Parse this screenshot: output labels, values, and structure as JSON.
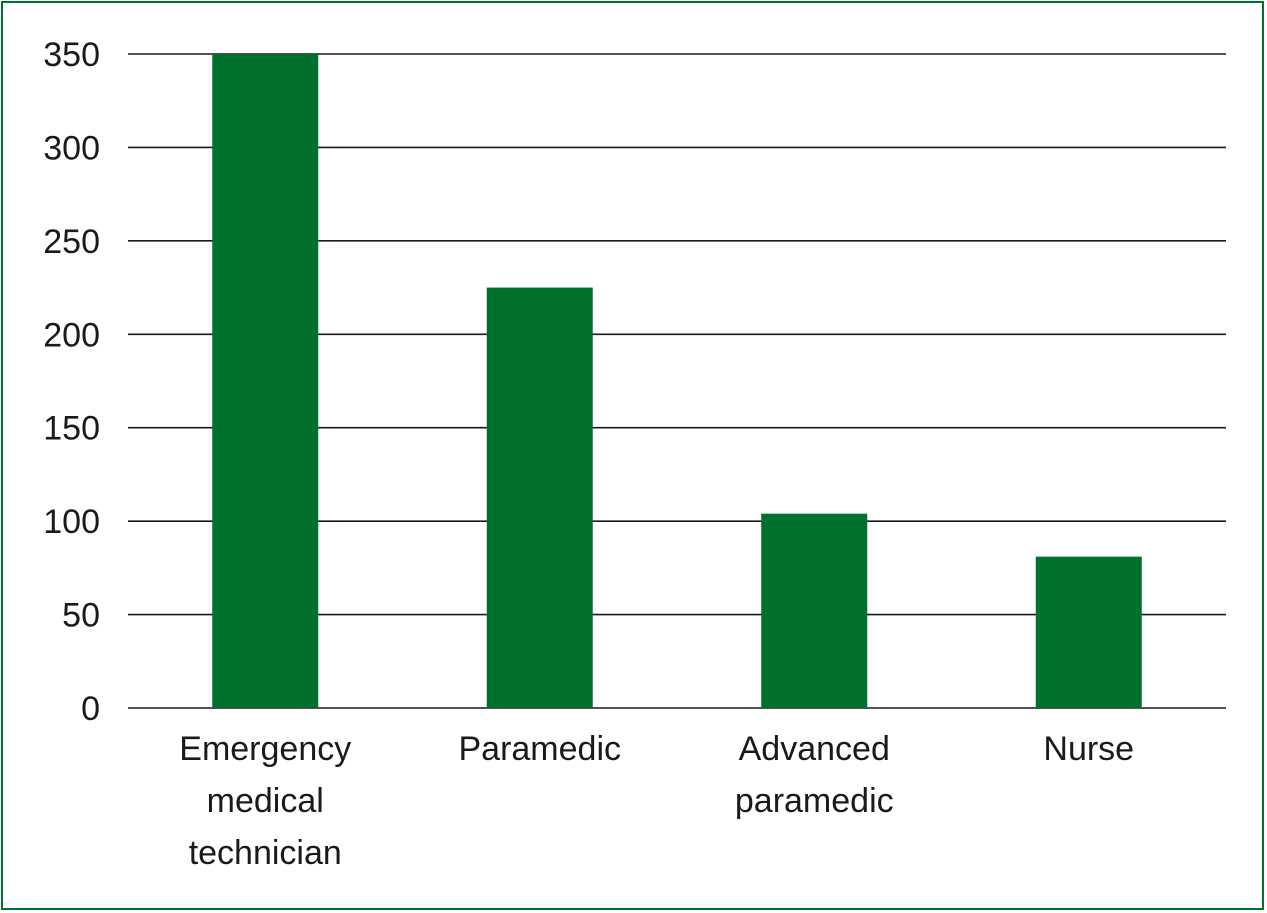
{
  "chart_data": {
    "type": "bar",
    "categories": [
      [
        "Emergency",
        "medical",
        "technician"
      ],
      [
        "Paramedic"
      ],
      [
        "Advanced",
        "paramedic"
      ],
      [
        "Nurse"
      ]
    ],
    "values": [
      350,
      225,
      104,
      81
    ],
    "yticks": [
      0,
      50,
      100,
      150,
      200,
      250,
      300,
      350
    ],
    "ylim": [
      0,
      350
    ],
    "title": "",
    "xlabel": "",
    "ylabel": "",
    "grid": true,
    "legend": "none",
    "bar_color": "#00702f",
    "frame_color": "#00702f"
  }
}
